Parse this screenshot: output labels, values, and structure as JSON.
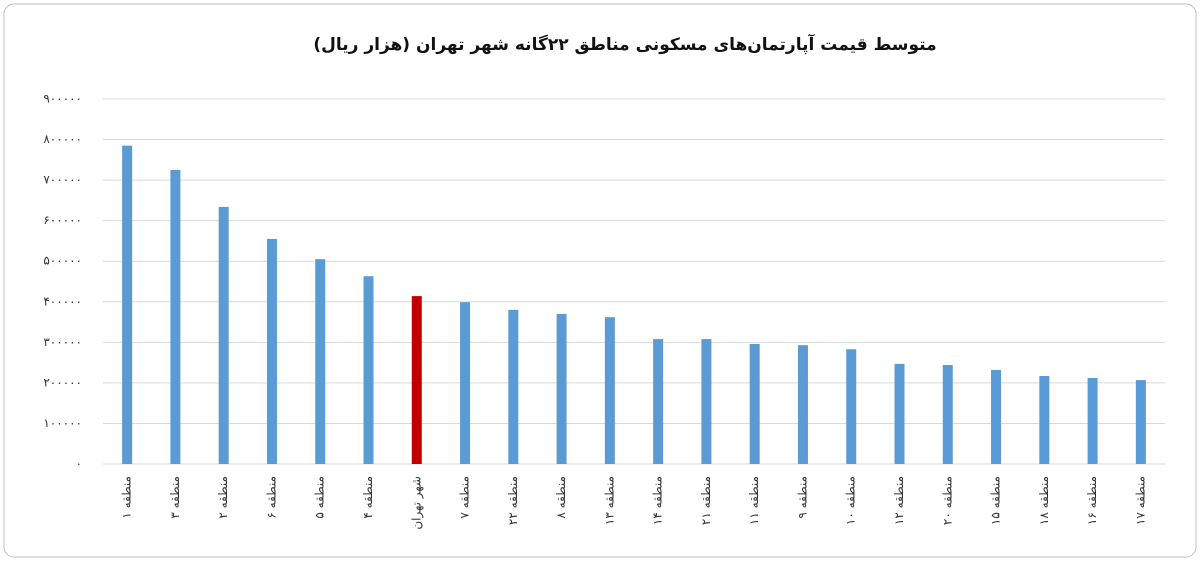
{
  "chart_data": {
    "type": "bar",
    "title": "متوسط قیمت آپارتمان‌های مسکونی مناطق ۲۲گانه شهر تهران (هزار ریال)",
    "categories": [
      "منطقه ۱",
      "منطقه ۳",
      "منطقه ۲",
      "منطقه ۶",
      "منطقه ۵",
      "منطقه ۴",
      "شهر تهران",
      "منطقه ۷",
      "منطقه ۲۲",
      "منطقه ۸",
      "منطقه ۱۳",
      "منطقه ۱۴",
      "منطقه ۲۱",
      "منطقه ۱۱",
      "منطقه ۹",
      "منطقه ۱۰",
      "منطقه ۱۲",
      "منطقه ۲۰",
      "منطقه ۱۵",
      "منطقه ۱۸",
      "منطقه ۱۶",
      "منطقه ۱۷"
    ],
    "values": [
      785000,
      725000,
      634000,
      555000,
      505000,
      463000,
      414000,
      399000,
      380000,
      370000,
      362000,
      308000,
      308000,
      296000,
      293000,
      283000,
      247000,
      244000,
      232000,
      217000,
      212000,
      207000
    ],
    "colors": [
      "#5b9bd5",
      "#5b9bd5",
      "#5b9bd5",
      "#5b9bd5",
      "#5b9bd5",
      "#5b9bd5",
      "#c00000",
      "#5b9bd5",
      "#5b9bd5",
      "#5b9bd5",
      "#5b9bd5",
      "#5b9bd5",
      "#5b9bd5",
      "#5b9bd5",
      "#5b9bd5",
      "#5b9bd5",
      "#5b9bd5",
      "#5b9bd5",
      "#5b9bd5",
      "#5b9bd5",
      "#5b9bd5",
      "#5b9bd5"
    ],
    "ylim": [
      0,
      900000
    ],
    "yticks": [
      {
        "value": 0,
        "label": "۰"
      },
      {
        "value": 100000,
        "label": "۱۰۰۰۰۰"
      },
      {
        "value": 200000,
        "label": "۲۰۰۰۰۰"
      },
      {
        "value": 300000,
        "label": "۳۰۰۰۰۰"
      },
      {
        "value": 400000,
        "label": "۴۰۰۰۰۰"
      },
      {
        "value": 500000,
        "label": "۵۰۰۰۰۰"
      },
      {
        "value": 600000,
        "label": "۶۰۰۰۰۰"
      },
      {
        "value": 700000,
        "label": "۷۰۰۰۰۰"
      },
      {
        "value": 800000,
        "label": "۸۰۰۰۰۰"
      },
      {
        "value": 900000,
        "label": "۹۰۰۰۰۰"
      }
    ],
    "grid": true
  }
}
